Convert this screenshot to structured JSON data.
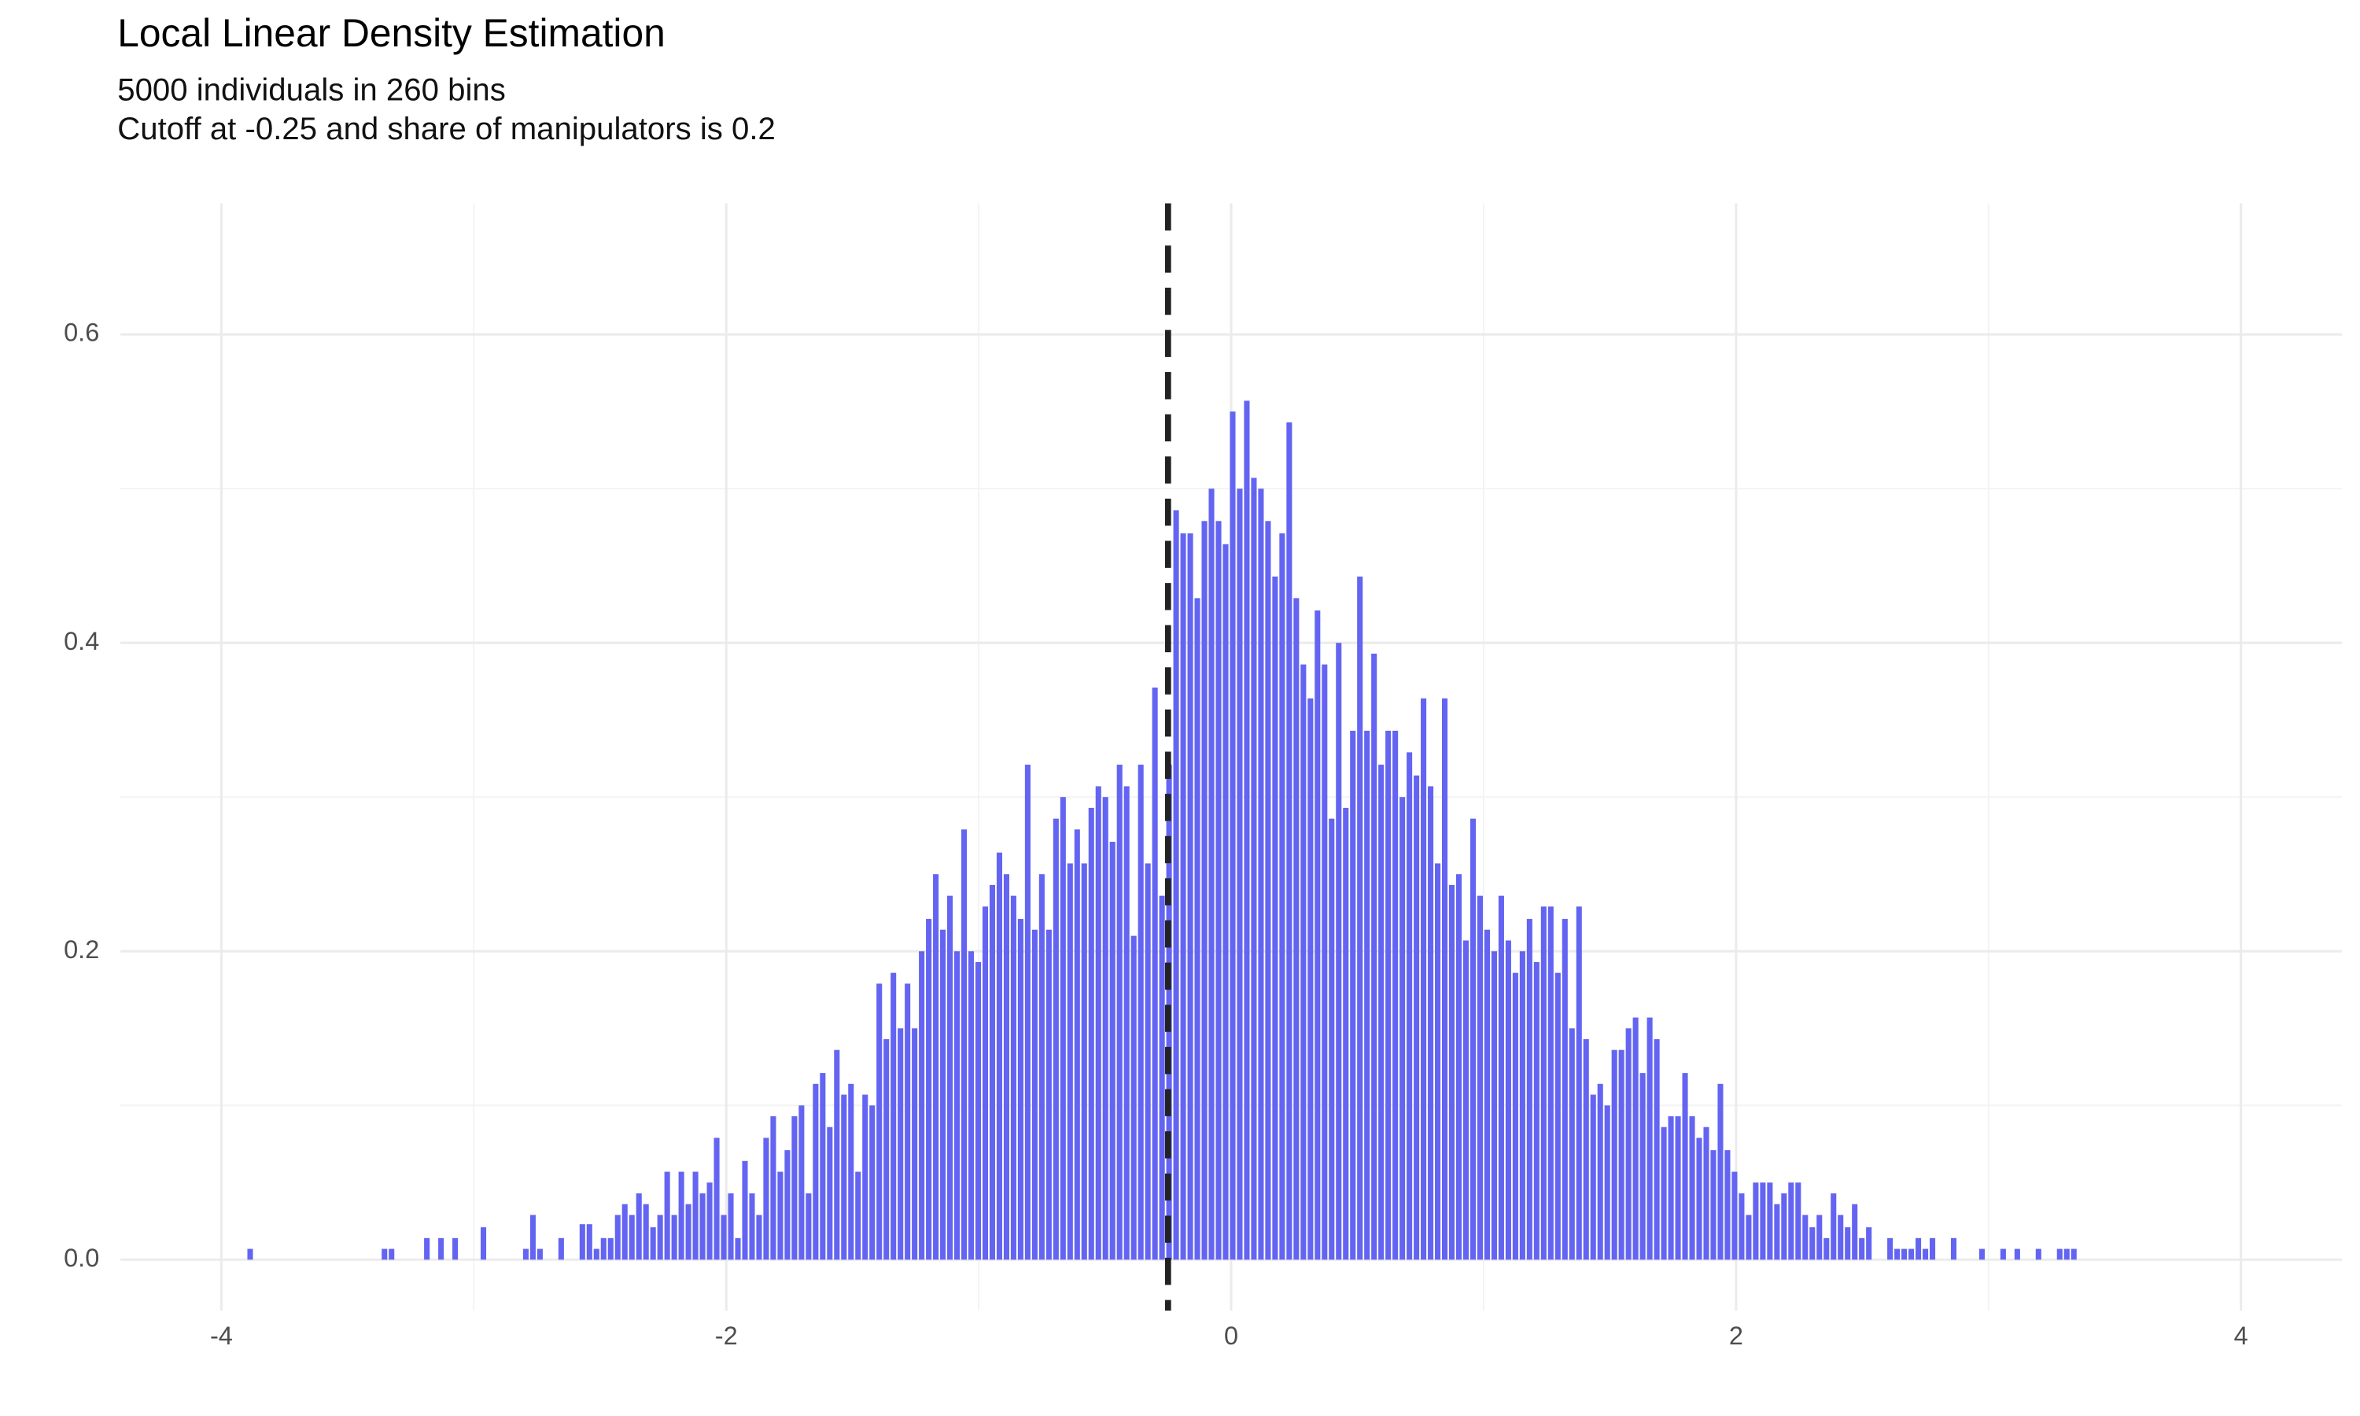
{
  "chart_data": {
    "type": "histogram",
    "title": "Local Linear Density Estimation",
    "subtitle": [
      "5000 individuals in 260 bins",
      "Cutoff at -0.25 and share of manipulators is 0.2"
    ],
    "color": "#6464f2",
    "vline": -0.25,
    "vline_color": "#222222",
    "grid": true,
    "xlim": [
      -4.4,
      4.4
    ],
    "ylim": [
      -0.033,
      0.685
    ],
    "xticks": [
      -4,
      -2,
      0,
      2,
      4
    ],
    "yticks": [
      {
        "value": 0,
        "label": "0.0"
      },
      0.2,
      0.4,
      0.6
    ],
    "x_minor_ticks": [
      -3,
      -1,
      1,
      3
    ],
    "y_minor_ticks": [
      0.1,
      0.3,
      0.5
    ],
    "bins": [
      -3.9,
      -3.872,
      -3.844,
      -3.816,
      -3.788,
      -3.76,
      -3.732,
      -3.704,
      -3.676,
      -3.648,
      -3.62,
      -3.592,
      -3.564,
      -3.536,
      -3.508,
      -3.48,
      -3.452,
      -3.424,
      -3.396,
      -3.368,
      -3.34,
      -3.312,
      -3.284,
      -3.256,
      -3.228,
      -3.2,
      -3.172,
      -3.144,
      -3.116,
      -3.088,
      -3.06,
      -3.032,
      -3.004,
      -2.976,
      -2.948,
      -2.92,
      -2.892,
      -2.864,
      -2.836,
      -2.808,
      -2.78,
      -2.752,
      -2.724,
      -2.696,
      -2.668,
      -2.64,
      -2.612,
      -2.584,
      -2.556,
      -2.528,
      -2.5,
      -2.472,
      -2.444,
      -2.416,
      -2.388,
      -2.36,
      -2.332,
      -2.304,
      -2.276,
      -2.248,
      -2.22,
      -2.192,
      -2.164,
      -2.136,
      -2.108,
      -2.08,
      -2.052,
      -2.024,
      -1.996,
      -1.968,
      -1.94,
      -1.912,
      -1.884,
      -1.856,
      -1.828,
      -1.8,
      -1.772,
      -1.744,
      -1.716,
      -1.688,
      -1.66,
      -1.632,
      -1.604,
      -1.576,
      -1.548,
      -1.52,
      -1.492,
      -1.464,
      -1.436,
      -1.408,
      -1.38,
      -1.352,
      -1.324,
      -1.296,
      -1.268,
      -1.24,
      -1.212,
      -1.184,
      -1.156,
      -1.128,
      -1.1,
      -1.072,
      -1.044,
      -1.016,
      -0.988,
      -0.96,
      -0.932,
      -0.904,
      -0.876,
      -0.848,
      -0.82,
      -0.792,
      -0.764,
      -0.736,
      -0.708,
      -0.68,
      -0.652,
      -0.624,
      -0.596,
      -0.568,
      -0.54,
      -0.512,
      -0.484,
      -0.456,
      -0.428,
      -0.4,
      -0.372,
      -0.344,
      -0.316,
      -0.288,
      -0.26,
      -0.232,
      -0.204,
      -0.176,
      -0.148,
      -0.12,
      -0.092,
      -0.064,
      -0.036,
      -0.008,
      0.02,
      0.048,
      0.076,
      0.104,
      0.132,
      0.16,
      0.188,
      0.216,
      0.244,
      0.272,
      0.3,
      0.328,
      0.356,
      0.384,
      0.412,
      0.44,
      0.468,
      0.496,
      0.524,
      0.552,
      0.58,
      0.608,
      0.636,
      0.664,
      0.692,
      0.72,
      0.748,
      0.776,
      0.804,
      0.832,
      0.86,
      0.888,
      0.916,
      0.944,
      0.972,
      1.0,
      1.028,
      1.056,
      1.084,
      1.112,
      1.14,
      1.168,
      1.196,
      1.224,
      1.252,
      1.28,
      1.308,
      1.336,
      1.364,
      1.392,
      1.42,
      1.448,
      1.476,
      1.504,
      1.532,
      1.56,
      1.588,
      1.616,
      1.644,
      1.672,
      1.7,
      1.728,
      1.756,
      1.784,
      1.812,
      1.84,
      1.868,
      1.896,
      1.924,
      1.952,
      1.98,
      2.008,
      2.036,
      2.064,
      2.092,
      2.12,
      2.148,
      2.176,
      2.204,
      2.232,
      2.26,
      2.288,
      2.316,
      2.344,
      2.372,
      2.4,
      2.428,
      2.456,
      2.484,
      2.512,
      2.54,
      2.568,
      2.596,
      2.624,
      2.652,
      2.68,
      2.708,
      2.736,
      2.764,
      2.792,
      2.82,
      2.848,
      2.876,
      2.904,
      2.932,
      2.96,
      2.988,
      3.016,
      3.044,
      3.072,
      3.1,
      3.128,
      3.156,
      3.184,
      3.212,
      3.24,
      3.268,
      3.296,
      3.324,
      3.352,
      3.38
    ],
    "values": [
      0.007,
      0,
      0,
      0,
      0,
      0,
      0,
      0,
      0,
      0,
      0,
      0,
      0,
      0,
      0,
      0,
      0,
      0,
      0,
      0.007,
      0.007,
      0,
      0,
      0,
      0,
      0.014,
      0,
      0.014,
      0,
      0.014,
      0,
      0,
      0,
      0.021,
      0,
      0,
      0,
      0,
      0,
      0.007,
      0.029,
      0.007,
      0,
      0,
      0.014,
      0,
      0,
      0.023,
      0.023,
      0.007,
      0.014,
      0.014,
      0.029,
      0.036,
      0.029,
      0.043,
      0.036,
      0.021,
      0.029,
      0.057,
      0.029,
      0.057,
      0.036,
      0.057,
      0.043,
      0.05,
      0.079,
      0.029,
      0.043,
      0.014,
      0.064,
      0.043,
      0.029,
      0.079,
      0.093,
      0.057,
      0.071,
      0.093,
      0.1,
      0.043,
      0.114,
      0.121,
      0.086,
      0.136,
      0.107,
      0.114,
      0.057,
      0.107,
      0.1,
      0.179,
      0.143,
      0.186,
      0.15,
      0.179,
      0.15,
      0.2,
      0.221,
      0.25,
      0.214,
      0.236,
      0.2,
      0.279,
      0.2,
      0.193,
      0.229,
      0.243,
      0.264,
      0.25,
      0.236,
      0.221,
      0.321,
      0.214,
      0.25,
      0.214,
      0.286,
      0.3,
      0.257,
      0.279,
      0.257,
      0.293,
      0.307,
      0.3,
      0.271,
      0.321,
      0.307,
      0.21,
      0.321,
      0.257,
      0.371,
      0.236,
      0.321,
      0.486,
      0.471,
      0.471,
      0.429,
      0.479,
      0.5,
      0.479,
      0.464,
      0.55,
      0.5,
      0.557,
      0.507,
      0.5,
      0.479,
      0.443,
      0.471,
      0.543,
      0.429,
      0.386,
      0.364,
      0.421,
      0.386,
      0.286,
      0.4,
      0.293,
      0.343,
      0.443,
      0.343,
      0.393,
      0.321,
      0.343,
      0.343,
      0.3,
      0.329,
      0.314,
      0.364,
      0.307,
      0.257,
      0.364,
      0.243,
      0.25,
      0.207,
      0.286,
      0.236,
      0.214,
      0.2,
      0.236,
      0.207,
      0.186,
      0.2,
      0.221,
      0.193,
      0.229,
      0.229,
      0.186,
      0.221,
      0.15,
      0.229,
      0.143,
      0.107,
      0.114,
      0.1,
      0.136,
      0.136,
      0.15,
      0.157,
      0.121,
      0.157,
      0.143,
      0.086,
      0.093,
      0.093,
      0.121,
      0.093,
      0.079,
      0.086,
      0.071,
      0.114,
      0.071,
      0.057,
      0.043,
      0.029,
      0.05,
      0.05,
      0.05,
      0.036,
      0.043,
      0.05,
      0.05,
      0.029,
      0.021,
      0.029,
      0.014,
      0.043,
      0.029,
      0.021,
      0.036,
      0.014,
      0.021,
      0,
      0,
      0.014,
      0.007,
      0.007,
      0.007,
      0.014,
      0.007,
      0.014,
      0,
      0,
      0.014,
      0,
      0,
      0,
      0.007,
      0,
      0,
      0.007,
      0,
      0.007,
      0,
      0,
      0.007,
      0,
      0,
      0.007,
      0.007,
      0.007,
      0
    ]
  }
}
